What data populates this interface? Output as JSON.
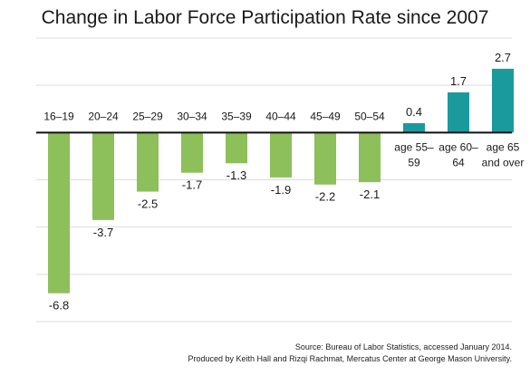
{
  "chart_data": {
    "type": "bar",
    "title": "Change in Labor Force Participation Rate since 2007",
    "categories": [
      "16–19",
      "20–24",
      "25–29",
      "30–34",
      "35–39",
      "40–44",
      "45–49",
      "50–54",
      "age 55–59",
      "age 60–64",
      "age 65 and over"
    ],
    "category_lines": [
      [
        "16–19"
      ],
      [
        "20–24"
      ],
      [
        "25–29"
      ],
      [
        "30–34"
      ],
      [
        "35–39"
      ],
      [
        "40–44"
      ],
      [
        "45–49"
      ],
      [
        "50–54"
      ],
      [
        "age 55–",
        "59"
      ],
      [
        "age 60–",
        "64"
      ],
      [
        "age 65",
        "and over"
      ]
    ],
    "values": [
      -6.8,
      -3.7,
      -2.5,
      -1.7,
      -1.3,
      -1.9,
      -2.2,
      -2.1,
      0.4,
      1.7,
      2.7
    ],
    "value_labels": [
      "-6.8",
      "-3.7",
      "-2.5",
      "-1.7",
      "-1.3",
      "-1.9",
      "-2.2",
      "-2.1",
      "0.4",
      "1.7",
      "2.7"
    ],
    "bar_colors": [
      "#8dbf5a",
      "#8dbf5a",
      "#8dbf5a",
      "#8dbf5a",
      "#8dbf5a",
      "#8dbf5a",
      "#8dbf5a",
      "#8dbf5a",
      "#1b9a9e",
      "#1b9a9e",
      "#1b9a9e"
    ],
    "ylim": [
      -8,
      4
    ],
    "gridlines": [
      4,
      2,
      -2,
      -4,
      -6,
      -8
    ],
    "grid": true,
    "xlabel": "",
    "ylabel": ""
  },
  "source": {
    "line1": "Source: Bureau of Labor Statistics, accessed January 2014.",
    "line2": "Produced by Keith Hall and Rizqi Rachmat, Mercatus Center at George Mason University."
  },
  "colors": {
    "negative": "#8dbf5a",
    "positive": "#1b9a9e",
    "grid": "#dcdcdc",
    "axis": "#111111"
  }
}
